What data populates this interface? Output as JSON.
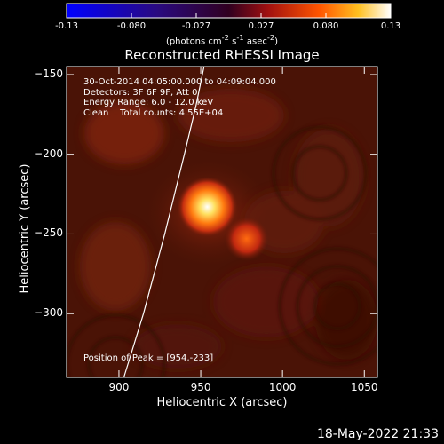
{
  "colorbar": {
    "ticks": [
      "-0.13",
      "-0.080",
      "-0.027",
      "0.027",
      "0.080",
      "0.13"
    ],
    "units_prefix": "(photons cm",
    "units_exp1": "-2",
    "units_mid": " s",
    "units_exp2": "-1",
    "units_mid2": " asec",
    "units_exp3": "-2",
    "units_suffix": ")"
  },
  "annotations": {
    "time": "30-Oct-2014 04:05:00.000 to 04:09:04.000",
    "detectors": "Detectors: 3F 6F 9F, Att 0",
    "energy": "Energy Range: 6.0 - 12.0 keV",
    "clean": "Clean    Total counts: 4.55E+04",
    "peak": "Position of Peak = [954,-233]"
  },
  "footer": {
    "timestamp": "18-May-2022 21:33"
  },
  "chart_data": {
    "type": "heatmap",
    "title": "Reconstructed RHESSI Image",
    "xlabel": "Heliocentric X (arcsec)",
    "ylabel": "Heliocentric Y (arcsec)",
    "xlim": [
      868,
      1058
    ],
    "ylim": [
      -340,
      -145
    ],
    "x_ticks": [
      900,
      950,
      1000,
      1050
    ],
    "y_ticks": [
      -150,
      -200,
      -250,
      -300
    ],
    "x_tick_labels": [
      "900",
      "950",
      "1000",
      "1050"
    ],
    "y_tick_labels": [
      "−150",
      "−200",
      "−250",
      "−300"
    ],
    "colorbar_range": [
      -0.13,
      0.13
    ],
    "sources": [
      {
        "x": 954,
        "y": -233,
        "peak": 0.13
      },
      {
        "x": 978,
        "y": -253,
        "peak": 0.07
      }
    ],
    "limb_curve": [
      [
        903,
        -340
      ],
      [
        915,
        -300
      ],
      [
        928,
        -250
      ],
      [
        940,
        -200
      ],
      [
        947,
        -170
      ],
      [
        952,
        -145
      ]
    ]
  }
}
